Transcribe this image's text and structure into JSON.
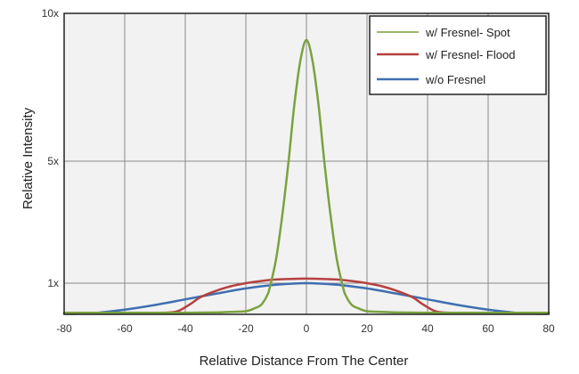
{
  "chart_data": {
    "type": "line",
    "xlabel": "Relative Distance From The Center",
    "ylabel": "Relative Intensity",
    "xlim": [
      -80,
      80
    ],
    "x_ticks": [
      "-80",
      "-60",
      "-40",
      "-20",
      "0",
      "20",
      "40",
      "60",
      "80"
    ],
    "x_tick_values": [
      -80,
      -60,
      -40,
      -20,
      0,
      20,
      40,
      60,
      80
    ],
    "ylim": [
      0,
      10
    ],
    "y_ticks": [
      {
        "label": "1x",
        "value": 1
      },
      {
        "label": "5x",
        "value": 5
      },
      {
        "label": "10x",
        "value": 10
      }
    ],
    "grid": true,
    "legend_position": "top-right",
    "series": [
      {
        "name": "w/ Fresnel- Spot",
        "color": "#7ba23f",
        "x": [
          -80,
          -60,
          -40,
          -30,
          -25,
          -20,
          -17,
          -15,
          -13,
          -12,
          -10,
          -8,
          -6,
          -4,
          -2,
          0,
          2,
          4,
          6,
          8,
          10,
          12,
          13,
          15,
          17,
          20,
          25,
          30,
          40,
          60,
          80
        ],
        "y": [
          0.05,
          0.05,
          0.05,
          0.06,
          0.08,
          0.1,
          0.2,
          0.3,
          0.6,
          0.9,
          1.8,
          3.2,
          4.9,
          6.9,
          8.4,
          9.1,
          8.4,
          6.9,
          4.9,
          3.2,
          1.8,
          0.9,
          0.6,
          0.3,
          0.2,
          0.1,
          0.08,
          0.06,
          0.05,
          0.05,
          0.05
        ]
      },
      {
        "name": "w/ Fresnel- Flood",
        "color": "#b5413f",
        "x": [
          -80,
          -70,
          -60,
          -50,
          -45,
          -42,
          -38,
          -35,
          -30,
          -25,
          -20,
          -15,
          -10,
          -5,
          0,
          5,
          10,
          15,
          20,
          25,
          30,
          35,
          38,
          42,
          45,
          50,
          60,
          70,
          80
        ],
        "y": [
          0.05,
          0.05,
          0.05,
          0.05,
          0.06,
          0.12,
          0.35,
          0.55,
          0.75,
          0.9,
          1.0,
          1.07,
          1.12,
          1.14,
          1.15,
          1.14,
          1.12,
          1.07,
          1.0,
          0.9,
          0.75,
          0.55,
          0.35,
          0.12,
          0.06,
          0.05,
          0.05,
          0.05,
          0.05
        ]
      },
      {
        "name": "w/o Fresnel",
        "color": "#3f6fb0",
        "x": [
          -80,
          -75,
          -70,
          -60,
          -50,
          -40,
          -30,
          -20,
          -10,
          0,
          10,
          20,
          30,
          40,
          50,
          60,
          70,
          75,
          80
        ],
        "y": [
          0.02,
          0.02,
          0.04,
          0.15,
          0.3,
          0.48,
          0.66,
          0.83,
          0.95,
          1.0,
          0.95,
          0.83,
          0.66,
          0.48,
          0.3,
          0.15,
          0.04,
          0.02,
          0.02
        ]
      }
    ]
  }
}
